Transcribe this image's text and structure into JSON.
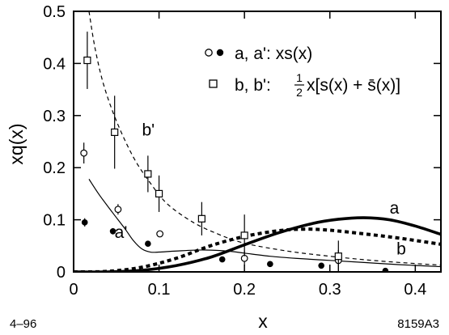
{
  "chart_data": {
    "type": "scatter",
    "ylabel": "xq(x)",
    "xlabel": "x",
    "xlim": [
      0,
      0.43
    ],
    "ylim": [
      0,
      0.5
    ],
    "x_ticks": [
      0,
      0.1,
      0.2,
      0.3,
      0.4
    ],
    "x_tick_labels": [
      "0",
      "0.1",
      "0.2",
      "0.3",
      "0.4"
    ],
    "y_ticks": [
      0,
      0.1,
      0.2,
      0.3,
      0.4,
      0.5
    ],
    "y_tick_labels": [
      "0",
      "0.1",
      "0.2",
      "0.3",
      "0.4",
      "0.5"
    ],
    "grid": false,
    "legend_position": "top-right",
    "legend": [
      {
        "marker": "open-and-filled-circle",
        "text": "a, a': xs(x)"
      },
      {
        "marker": "open-square",
        "text_prefix": "b, b': ",
        "text_fraction": "1/2",
        "text_suffix": "x[s(x) + s̄(x)]"
      }
    ],
    "footer_left": "4–96",
    "footer_right": "8159A3",
    "series": [
      {
        "marker": "open-circle",
        "points": [
          {
            "x": 0.012,
            "y": 0.228,
            "err": 0.02
          },
          {
            "x": 0.052,
            "y": 0.12,
            "err": 0.01
          },
          {
            "x": 0.101,
            "y": 0.073,
            "err": 0.006
          },
          {
            "x": 0.2,
            "y": 0.026,
            "err": 0.015
          },
          {
            "x": 0.31,
            "y": 0.022,
            "err": 0.02
          }
        ]
      },
      {
        "marker": "filled-circle",
        "points": [
          {
            "x": 0.013,
            "y": 0.095,
            "err": 0.008
          },
          {
            "x": 0.046,
            "y": 0.078,
            "err": 0.006
          },
          {
            "x": 0.087,
            "y": 0.054,
            "err": 0.0
          },
          {
            "x": 0.174,
            "y": 0.024,
            "err": 0.0
          },
          {
            "x": 0.23,
            "y": 0.015,
            "err": 0.0
          },
          {
            "x": 0.29,
            "y": 0.012,
            "err": 0.0
          },
          {
            "x": 0.365,
            "y": 0.002,
            "err": 0.0
          }
        ]
      },
      {
        "marker": "open-square",
        "points": [
          {
            "x": 0.016,
            "y": 0.406,
            "err": 0.055
          },
          {
            "x": 0.048,
            "y": 0.268,
            "err": 0.07
          },
          {
            "x": 0.087,
            "y": 0.188,
            "err": 0.035
          },
          {
            "x": 0.1,
            "y": 0.15,
            "err": 0.035
          },
          {
            "x": 0.15,
            "y": 0.102,
            "err": 0.032
          },
          {
            "x": 0.2,
            "y": 0.07,
            "err": 0.04
          },
          {
            "x": 0.31,
            "y": 0.03,
            "err": 0.03
          }
        ]
      }
    ],
    "curves": [
      {
        "label": "a",
        "style": "thick-solid",
        "points": [
          [
            0.0,
            0.0
          ],
          [
            0.04,
            0.0
          ],
          [
            0.08,
            0.003
          ],
          [
            0.12,
            0.012
          ],
          [
            0.16,
            0.028
          ],
          [
            0.2,
            0.052
          ],
          [
            0.24,
            0.075
          ],
          [
            0.28,
            0.093
          ],
          [
            0.31,
            0.101
          ],
          [
            0.34,
            0.104
          ],
          [
            0.37,
            0.1
          ],
          [
            0.4,
            0.088
          ],
          [
            0.43,
            0.072
          ]
        ]
      },
      {
        "label": "a'",
        "style": "thick-dotted",
        "points": [
          [
            0.0,
            0.0
          ],
          [
            0.04,
            0.001
          ],
          [
            0.08,
            0.009
          ],
          [
            0.12,
            0.026
          ],
          [
            0.16,
            0.05
          ],
          [
            0.2,
            0.068
          ],
          [
            0.24,
            0.079
          ],
          [
            0.27,
            0.082
          ],
          [
            0.3,
            0.08
          ],
          [
            0.34,
            0.073
          ],
          [
            0.38,
            0.065
          ],
          [
            0.43,
            0.053
          ]
        ]
      },
      {
        "label": "b",
        "style": "thin-solid",
        "points": [
          [
            0.018,
            0.178
          ],
          [
            0.03,
            0.148
          ],
          [
            0.045,
            0.115
          ],
          [
            0.06,
            0.083
          ],
          [
            0.07,
            0.06
          ],
          [
            0.08,
            0.044
          ],
          [
            0.09,
            0.038
          ],
          [
            0.1,
            0.038
          ],
          [
            0.12,
            0.04
          ],
          [
            0.15,
            0.042
          ],
          [
            0.18,
            0.04
          ],
          [
            0.2,
            0.036
          ],
          [
            0.23,
            0.03
          ],
          [
            0.26,
            0.026
          ],
          [
            0.3,
            0.022
          ],
          [
            0.34,
            0.018
          ],
          [
            0.38,
            0.014
          ],
          [
            0.43,
            0.01
          ]
        ]
      },
      {
        "label": "b'",
        "style": "thin-dashed",
        "points": [
          [
            0.018,
            0.5
          ],
          [
            0.025,
            0.43
          ],
          [
            0.035,
            0.36
          ],
          [
            0.05,
            0.29
          ],
          [
            0.07,
            0.22
          ],
          [
            0.09,
            0.17
          ],
          [
            0.11,
            0.13
          ],
          [
            0.14,
            0.095
          ],
          [
            0.17,
            0.072
          ],
          [
            0.2,
            0.055
          ],
          [
            0.25,
            0.04
          ],
          [
            0.3,
            0.03
          ],
          [
            0.35,
            0.022
          ],
          [
            0.4,
            0.016
          ],
          [
            0.43,
            0.013
          ]
        ]
      }
    ],
    "curve_labels": [
      {
        "text": "a",
        "x": 0.37,
        "y": 0.112
      },
      {
        "text": "b",
        "x": 0.378,
        "y": 0.033
      },
      {
        "text": "a'",
        "x": 0.048,
        "y": 0.065
      },
      {
        "text": "b'",
        "x": 0.08,
        "y": 0.262
      }
    ]
  }
}
